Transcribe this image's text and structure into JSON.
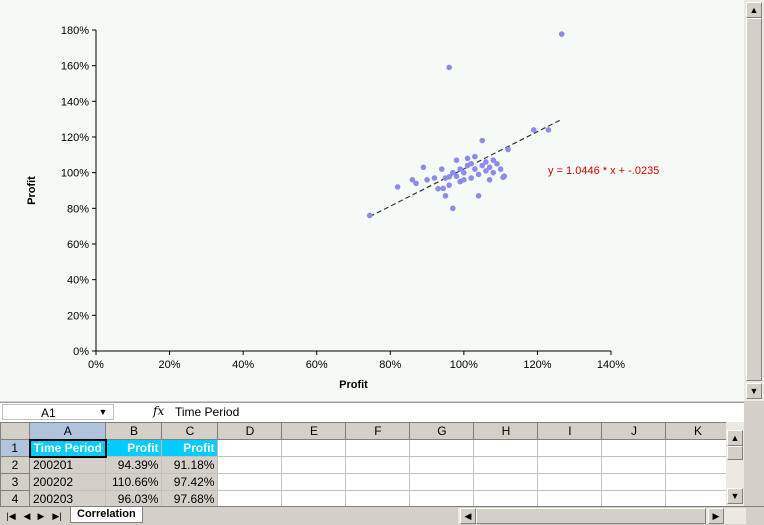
{
  "chart_data": {
    "type": "scatter",
    "xlabel": "Profit",
    "ylabel": "Profit",
    "xlim": [
      0,
      1.4
    ],
    "ylim": [
      0,
      1.8
    ],
    "x_ticks": [
      "0%",
      "20%",
      "40%",
      "60%",
      "80%",
      "100%",
      "120%",
      "140%"
    ],
    "y_ticks": [
      "0%",
      "20%",
      "40%",
      "60%",
      "80%",
      "100%",
      "120%",
      "140%",
      "160%",
      "180%"
    ],
    "grid": false,
    "point_color": "#8c8ced",
    "points": [
      [
        0.744,
        0.76
      ],
      [
        0.82,
        0.92
      ],
      [
        0.86,
        0.96
      ],
      [
        0.87,
        0.94
      ],
      [
        0.89,
        1.03
      ],
      [
        0.9,
        0.96
      ],
      [
        0.92,
        0.97
      ],
      [
        0.93,
        0.91
      ],
      [
        0.94,
        1.02
      ],
      [
        0.95,
        0.97
      ],
      [
        0.95,
        0.87
      ],
      [
        0.96,
        0.93
      ],
      [
        0.96,
        1.59
      ],
      [
        0.97,
        1.0
      ],
      [
        0.97,
        0.8
      ],
      [
        0.98,
        0.98
      ],
      [
        0.98,
        1.07
      ],
      [
        0.99,
        0.95
      ],
      [
        0.99,
        1.02
      ],
      [
        1.0,
        1.0
      ],
      [
        1.0,
        0.96
      ],
      [
        1.01,
        1.04
      ],
      [
        1.01,
        1.08
      ],
      [
        1.02,
        0.97
      ],
      [
        1.02,
        1.05
      ],
      [
        1.03,
        1.02
      ],
      [
        1.03,
        1.09
      ],
      [
        1.04,
        0.99
      ],
      [
        1.04,
        0.87
      ],
      [
        1.05,
        1.04
      ],
      [
        1.05,
        1.18
      ],
      [
        1.06,
        1.01
      ],
      [
        1.06,
        1.06
      ],
      [
        1.07,
        1.03
      ],
      [
        1.07,
        0.96
      ],
      [
        1.08,
        1.07
      ],
      [
        1.08,
        1.0
      ],
      [
        1.09,
        1.05
      ],
      [
        1.1,
        1.02
      ],
      [
        1.11,
        0.98
      ],
      [
        1.12,
        1.13
      ],
      [
        1.19,
        1.24
      ],
      [
        1.23,
        1.24
      ],
      [
        1.266,
        1.777
      ],
      [
        0.9439,
        0.9118
      ],
      [
        1.1066,
        0.9742
      ],
      [
        0.9603,
        0.9768
      ]
    ],
    "trendline": {
      "slope": 1.0446,
      "intercept": -0.0235,
      "x_range": [
        0.744,
        1.266
      ],
      "label": "y = 1.0446 * x + -.0235",
      "label_color": "#cc0000"
    }
  },
  "formula_bar": {
    "cell_ref": "A1",
    "value": "Time Period"
  },
  "grid": {
    "columns": [
      "A",
      "B",
      "C",
      "D",
      "E",
      "F",
      "G",
      "H",
      "I",
      "J",
      "K"
    ],
    "rows": [
      {
        "num": "1",
        "cells": [
          "Time Period",
          "Profit",
          "Profit"
        ]
      },
      {
        "num": "2",
        "cells": [
          "200201",
          "94.39%",
          "91.18%"
        ]
      },
      {
        "num": "3",
        "cells": [
          "200202",
          "110.66%",
          "97.42%"
        ]
      },
      {
        "num": "4",
        "cells": [
          "200203",
          "96.03%",
          "97.68%"
        ]
      }
    ]
  },
  "sheet_tab": "Correlation"
}
